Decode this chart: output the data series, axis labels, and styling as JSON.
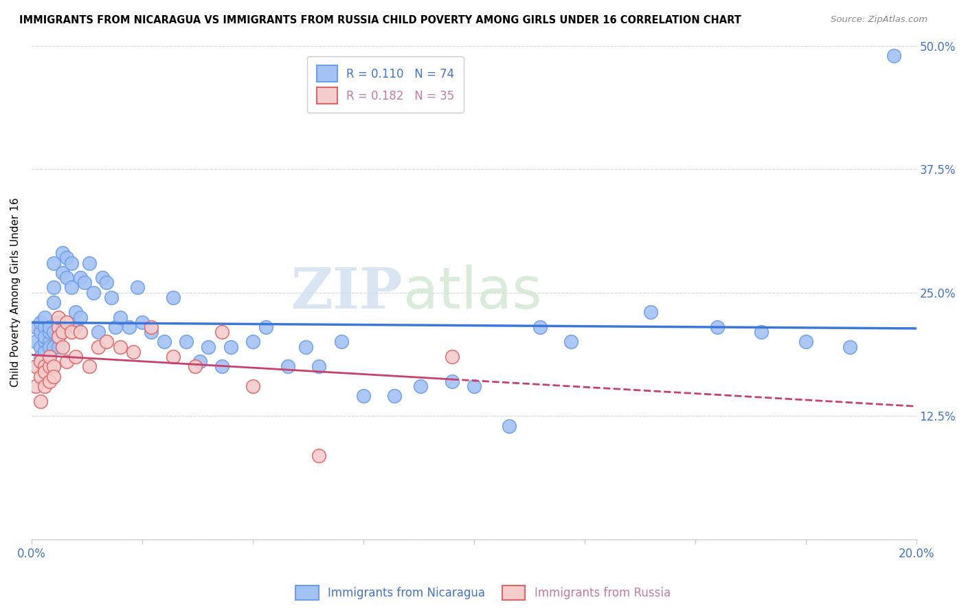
{
  "title": "IMMIGRANTS FROM NICARAGUA VS IMMIGRANTS FROM RUSSIA CHILD POVERTY AMONG GIRLS UNDER 16 CORRELATION CHART",
  "source": "Source: ZipAtlas.com",
  "ylabel": "Child Poverty Among Girls Under 16",
  "xlim": [
    0.0,
    0.2
  ],
  "ylim": [
    0.0,
    0.5
  ],
  "xticks": [
    0.0,
    0.025,
    0.05,
    0.075,
    0.1,
    0.125,
    0.15,
    0.175,
    0.2
  ],
  "xticklabels": [
    "0.0%",
    "",
    "",
    "",
    "",
    "",
    "",
    "",
    "20.0%"
  ],
  "yticks": [
    0.0,
    0.125,
    0.25,
    0.375,
    0.5
  ],
  "yticklabels": [
    "",
    "12.5%",
    "25.0%",
    "37.5%",
    "50.0%"
  ],
  "nicaragua_color": "#a4c2f4",
  "nicaragua_edge_color": "#6d9eeb",
  "russia_color": "#f4cccc",
  "russia_edge_color": "#e06666",
  "nicaragua_line_color": "#3c78d8",
  "russia_line_color": "#c9406a",
  "R_nicaragua": 0.11,
  "N_nicaragua": 74,
  "R_russia": 0.182,
  "N_russia": 35,
  "watermark_zip": "ZIP",
  "watermark_atlas": "atlas",
  "nicaragua_x": [
    0.001,
    0.001,
    0.002,
    0.002,
    0.002,
    0.002,
    0.003,
    0.003,
    0.003,
    0.003,
    0.003,
    0.004,
    0.004,
    0.004,
    0.004,
    0.005,
    0.005,
    0.005,
    0.005,
    0.005,
    0.006,
    0.006,
    0.006,
    0.007,
    0.007,
    0.007,
    0.008,
    0.008,
    0.009,
    0.009,
    0.01,
    0.01,
    0.011,
    0.011,
    0.012,
    0.013,
    0.014,
    0.015,
    0.016,
    0.017,
    0.018,
    0.019,
    0.02,
    0.022,
    0.024,
    0.025,
    0.027,
    0.03,
    0.032,
    0.035,
    0.038,
    0.04,
    0.043,
    0.045,
    0.05,
    0.053,
    0.058,
    0.062,
    0.065,
    0.07,
    0.075,
    0.082,
    0.088,
    0.095,
    0.1,
    0.108,
    0.115,
    0.122,
    0.14,
    0.155,
    0.165,
    0.175,
    0.185,
    0.195
  ],
  "nicaragua_y": [
    0.2,
    0.215,
    0.195,
    0.21,
    0.185,
    0.22,
    0.2,
    0.215,
    0.205,
    0.19,
    0.225,
    0.2,
    0.21,
    0.195,
    0.215,
    0.255,
    0.24,
    0.28,
    0.195,
    0.21,
    0.205,
    0.22,
    0.195,
    0.29,
    0.27,
    0.215,
    0.285,
    0.265,
    0.28,
    0.255,
    0.215,
    0.23,
    0.265,
    0.225,
    0.26,
    0.28,
    0.25,
    0.21,
    0.265,
    0.26,
    0.245,
    0.215,
    0.225,
    0.215,
    0.255,
    0.22,
    0.21,
    0.2,
    0.245,
    0.2,
    0.18,
    0.195,
    0.175,
    0.195,
    0.2,
    0.215,
    0.175,
    0.195,
    0.175,
    0.2,
    0.145,
    0.145,
    0.155,
    0.16,
    0.155,
    0.115,
    0.215,
    0.2,
    0.23,
    0.215,
    0.21,
    0.2,
    0.195,
    0.49
  ],
  "russia_x": [
    0.001,
    0.001,
    0.002,
    0.002,
    0.002,
    0.003,
    0.003,
    0.003,
    0.004,
    0.004,
    0.004,
    0.005,
    0.005,
    0.006,
    0.006,
    0.006,
    0.007,
    0.007,
    0.008,
    0.008,
    0.009,
    0.01,
    0.011,
    0.013,
    0.015,
    0.017,
    0.02,
    0.023,
    0.027,
    0.032,
    0.037,
    0.043,
    0.05,
    0.065,
    0.095
  ],
  "russia_y": [
    0.175,
    0.155,
    0.18,
    0.165,
    0.14,
    0.175,
    0.155,
    0.17,
    0.175,
    0.16,
    0.185,
    0.175,
    0.165,
    0.215,
    0.205,
    0.225,
    0.21,
    0.195,
    0.18,
    0.22,
    0.21,
    0.185,
    0.21,
    0.175,
    0.195,
    0.2,
    0.195,
    0.19,
    0.215,
    0.185,
    0.175,
    0.21,
    0.155,
    0.085,
    0.185
  ]
}
